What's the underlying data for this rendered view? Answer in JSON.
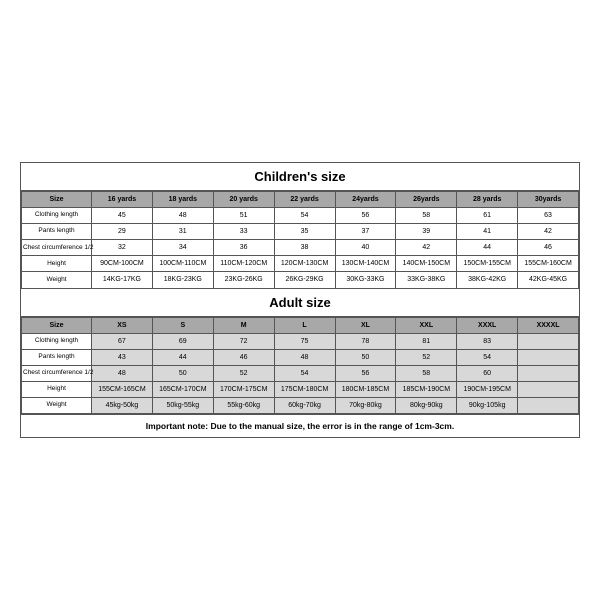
{
  "children": {
    "title": "Children's size",
    "header_label": "Size",
    "headers": [
      "16 yards",
      "18 yards",
      "20 yards",
      "22 yards",
      "24yards",
      "26yards",
      "28 yards",
      "30yards"
    ],
    "rows": [
      {
        "label": "Clothing length",
        "cells": [
          "45",
          "48",
          "51",
          "54",
          "56",
          "58",
          "61",
          "63"
        ]
      },
      {
        "label": "Pants length",
        "cells": [
          "29",
          "31",
          "33",
          "35",
          "37",
          "39",
          "41",
          "42"
        ]
      },
      {
        "label": "Chest circumference 1/2",
        "cells": [
          "32",
          "34",
          "36",
          "38",
          "40",
          "42",
          "44",
          "46"
        ]
      },
      {
        "label": "Height",
        "cells": [
          "90CM-100CM",
          "100CM-110CM",
          "110CM-120CM",
          "120CM-130CM",
          "130CM-140CM",
          "140CM-150CM",
          "150CM-155CM",
          "155CM-160CM"
        ]
      },
      {
        "label": "Weight",
        "cells": [
          "14KG-17KG",
          "18KG-23KG",
          "23KG-26KG",
          "26KG-29KG",
          "30KG-33KG",
          "33KG-38KG",
          "38KG-42KG",
          "42KG-45KG"
        ]
      }
    ]
  },
  "adult": {
    "title": "Adult size",
    "header_label": "Size",
    "headers": [
      "XS",
      "S",
      "M",
      "L",
      "XL",
      "XXL",
      "XXXL",
      "XXXXL"
    ],
    "rows": [
      {
        "label": "Clothing length",
        "cells": [
          "67",
          "69",
          "72",
          "75",
          "78",
          "81",
          "83",
          ""
        ]
      },
      {
        "label": "Pants length",
        "cells": [
          "43",
          "44",
          "46",
          "48",
          "50",
          "52",
          "54",
          ""
        ]
      },
      {
        "label": "Chest circumference 1/2",
        "cells": [
          "48",
          "50",
          "52",
          "54",
          "56",
          "58",
          "60",
          ""
        ]
      },
      {
        "label": "Height",
        "cells": [
          "155CM-165CM",
          "165CM-170CM",
          "170CM-175CM",
          "175CM-180CM",
          "180CM-185CM",
          "185CM-190CM",
          "190CM-195CM",
          ""
        ]
      },
      {
        "label": "Weight",
        "cells": [
          "45kg-50kg",
          "50kg-55kg",
          "55kg-60kg",
          "60kg-70kg",
          "70kg-80kg",
          "80kg-90kg",
          "90kg-105kg",
          ""
        ]
      }
    ]
  },
  "note": "Important note: Due to the manual size, the error is in the range of 1cm-3cm.",
  "style": {
    "header_bg": "#a8a8a8",
    "adult_cell_bg": "#d8d8d8",
    "border_color": "#555555",
    "background": "#ffffff"
  }
}
